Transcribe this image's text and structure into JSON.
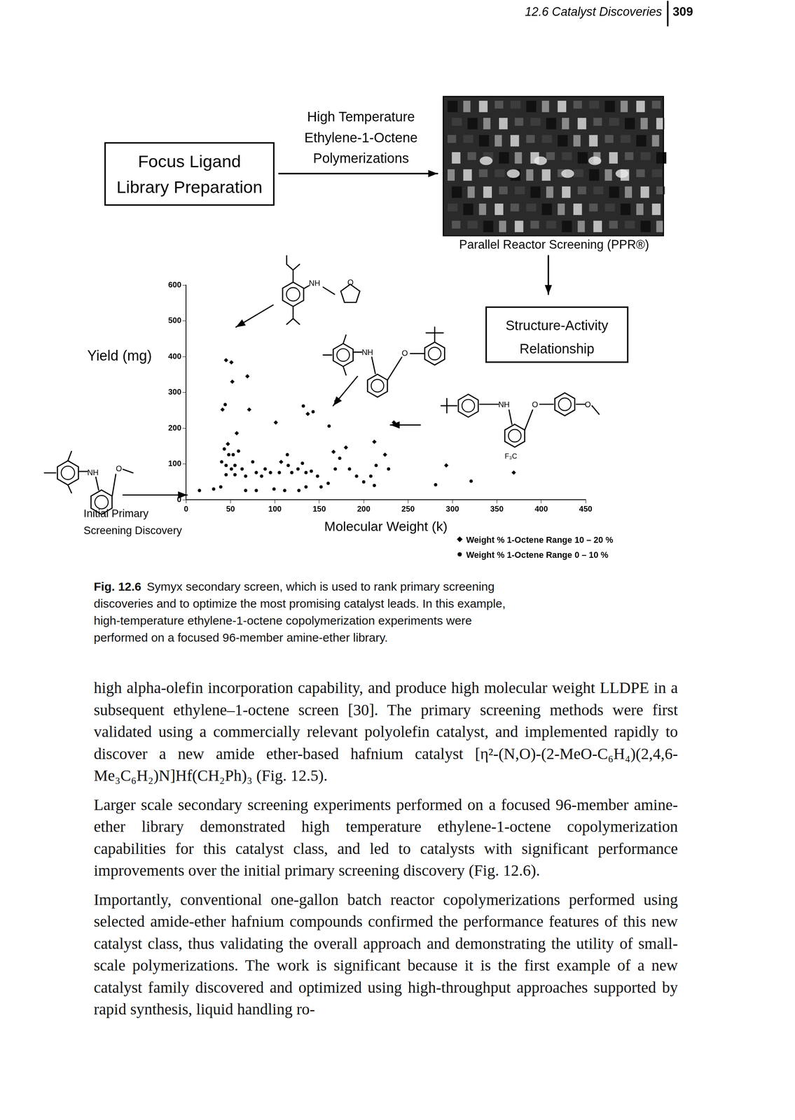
{
  "header": {
    "section": "12.6 Catalyst Discoveries",
    "page": "309"
  },
  "flow": {
    "ligand_box": [
      "Focus Ligand",
      "Library Preparation"
    ],
    "arrow_label": [
      "High Temperature",
      "Ethylene-1-Octene",
      "Polymerizations"
    ],
    "photo_caption": "Parallel Reactor Screening (PPR®)",
    "sar_box": [
      "Structure-Activity",
      "Relationship"
    ],
    "initial_label": [
      "Initial Primary",
      "Screening Discovery"
    ]
  },
  "structures": [
    {
      "labels": [
        "NH",
        "O"
      ]
    },
    {
      "labels": [
        "NH",
        "O"
      ]
    },
    {
      "labels": [
        "NH",
        "O",
        "F₃C",
        "O"
      ]
    },
    {
      "labels": [
        "NH",
        "O"
      ]
    }
  ],
  "chart_data": {
    "type": "scatter",
    "x_label": "Molecular Weight (k)",
    "y_label": "Yield (mg)",
    "xlim": [
      0,
      450
    ],
    "xticks": [
      0,
      50,
      100,
      150,
      200,
      250,
      300,
      350,
      400,
      450
    ],
    "ylim": [
      0,
      600
    ],
    "yticks": [
      0,
      100,
      200,
      300,
      400,
      500,
      600
    ],
    "grid": false,
    "series": [
      {
        "name": "Weight % 1-Octene Range 10 – 20 %",
        "color": "#000000",
        "marker": "diamond",
        "x": [
          45,
          51,
          52,
          69,
          41,
          71,
          101,
          137,
          169,
          234,
          212,
          57,
          47,
          107,
          166,
          180,
          224,
          293,
          369
        ],
        "values": [
          390,
          384,
          330,
          345,
          252,
          252,
          216,
          240,
          276,
          216,
          162,
          186,
          156,
          106,
          134,
          146,
          126,
          96,
          76
        ]
      },
      {
        "name": "Weight % 1-Octene Range 0 – 10 %",
        "color": "#000000",
        "marker": "circle",
        "x": [
          44,
          132,
          143,
          161,
          43,
          48,
          53,
          59,
          40,
          45,
          51,
          55,
          63,
          67,
          55,
          45,
          39,
          31,
          75,
          79,
          85,
          89,
          95,
          105,
          114,
          115,
          119,
          126,
          131,
          135,
          141,
          148,
          152,
          160,
          168,
          173,
          184,
          192,
          200,
          208,
          214,
          212,
          228,
          281,
          321,
          99,
          111,
          127,
          135,
          67,
          79,
          15
        ],
        "values": [
          266,
          262,
          246,
          206,
          142,
          126,
          126,
          136,
          106,
          96,
          86,
          96,
          86,
          66,
          70,
          70,
          36,
          30,
          106,
          76,
          66,
          86,
          76,
          76,
          126,
          96,
          76,
          86,
          102,
          76,
          80,
          66,
          36,
          46,
          86,
          116,
          86,
          66,
          50,
          66,
          96,
          40,
          86,
          42,
          52,
          30,
          26,
          26,
          36,
          26,
          26,
          26
        ]
      }
    ]
  },
  "caption": {
    "label": "Fig. 12.6",
    "text": "Symyx secondary screen, which is used to rank primary screening discoveries and to optimize the most promising catalyst leads. In this example, high-temperature ethylene-1-octene copolymerization experiments were performed on a focused 96-member amine-ether library."
  },
  "body": [
    "high alpha-olefin incorporation capability, and produce high molecular weight LLDPE in a subsequent ethylene–1-octene screen [30]. The primary screening methods were first validated using a commercially relevant polyolefin catalyst, and implemented rapidly to discover a new amide ether-based hafnium catalyst [η²-(N,O)-(2-MeO-C₆H₄)(2,4,6-Me₃C₆H₂)N]Hf(CH₂Ph)₃ (Fig. 12.5).",
    "Larger scale secondary screening experiments performed on a focused 96-member amine-ether library demonstrated high temperature ethylene-1-octene copolymerization capabilities for this catalyst class, and led to catalysts with significant performance improvements over the initial primary screening discovery (Fig. 12.6).",
    "Importantly, conventional one-gallon batch reactor copolymerizations performed using selected amide-ether hafnium compounds confirmed the performance features of this new catalyst class, thus validating the overall approach and demonstrating the utility of small-scale polymerizations. The work is significant because it is the first example of a new catalyst family discovered and optimized using high-throughput approaches supported by rapid synthesis, liquid handling ro-"
  ]
}
